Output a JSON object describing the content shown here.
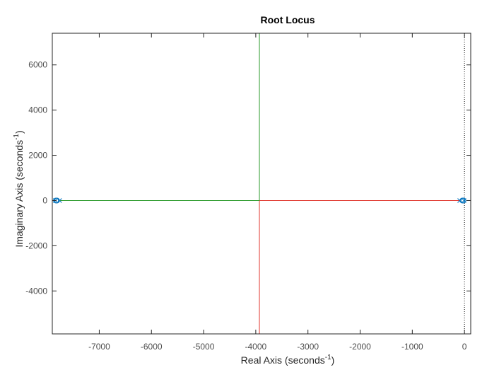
{
  "chart_data": {
    "type": "line",
    "title": "Root Locus",
    "xlabel": {
      "main": "Real Axis (seconds",
      "sup": "-1",
      "tail": ")"
    },
    "ylabel": {
      "main": "Imaginary Axis (seconds",
      "sup": "-1",
      "tail": ")"
    },
    "xlim": [
      -7900,
      120
    ],
    "ylim": [
      -5900,
      7400
    ],
    "xticks": [
      -7000,
      -6000,
      -5000,
      -4000,
      -3000,
      -2000,
      -1000,
      0
    ],
    "yticks": [
      -4000,
      -2000,
      0,
      2000,
      4000,
      6000
    ],
    "grid": false,
    "legend": "none",
    "colors": {
      "axes": "#262626",
      "ticks_text": "#4d4d4d",
      "series_red": "#e0362c",
      "series_green": "#2a9a2a",
      "markers": "#0072bd",
      "zero_line": "#000000"
    },
    "series": [
      {
        "color": "red",
        "x": [
          -80,
          -3930
        ],
        "y": [
          0,
          0
        ]
      },
      {
        "color": "red",
        "x": [
          -3930,
          -3930
        ],
        "y": [
          0,
          -5900
        ]
      },
      {
        "color": "green",
        "x": [
          -7750,
          -3930
        ],
        "y": [
          0,
          0
        ]
      },
      {
        "color": "green",
        "x": [
          -3930,
          -3930
        ],
        "y": [
          0,
          7400
        ]
      }
    ],
    "poles": [
      {
        "x": -7760,
        "y": 0
      },
      {
        "x": -7840,
        "y": 0
      },
      {
        "x": -90,
        "y": 0
      },
      {
        "x": -10,
        "y": 0
      }
    ],
    "zeros": [
      {
        "x": -7830,
        "y": 0
      },
      {
        "x": -7810,
        "y": 0
      },
      {
        "x": -40,
        "y": 0
      },
      {
        "x": -20,
        "y": 0
      }
    ],
    "zero_line_x": 0
  }
}
